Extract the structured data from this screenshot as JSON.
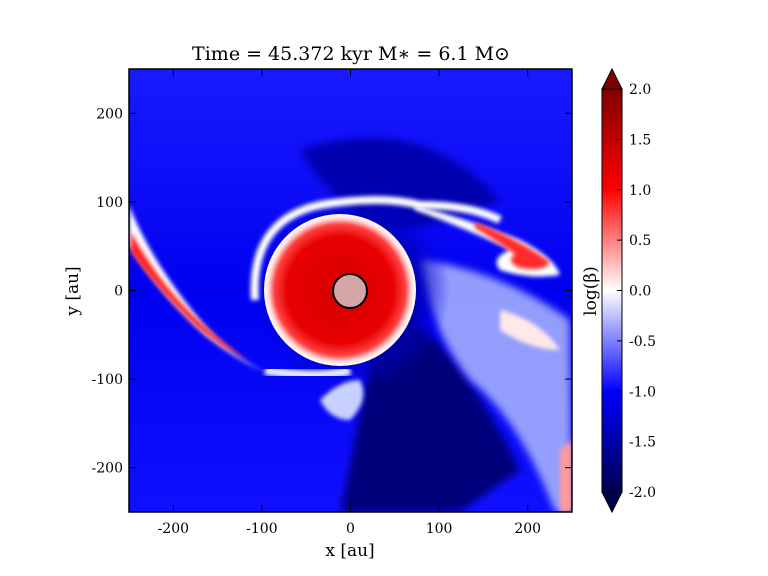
{
  "chart_data": {
    "type": "heatmap",
    "title": "Time = 45.372 kyr    M$_*$ = 6.1 M$_\\odot$",
    "title_display": "Time = 45.372 kyr    M∗ = 6.1 M⊙",
    "xlabel": "x [au]",
    "ylabel": "y [au]",
    "xlim": [
      -250,
      250
    ],
    "ylim": [
      -250,
      250
    ],
    "x_ticks": [
      -200,
      -100,
      0,
      100,
      200
    ],
    "y_ticks": [
      -200,
      -100,
      0,
      100,
      200
    ],
    "x_tick_labels": [
      "-200",
      "-100",
      "0",
      "100",
      "200"
    ],
    "y_tick_labels": [
      "-200",
      "-100",
      "0",
      "100",
      "200"
    ],
    "colorbar": {
      "label": "log(β)",
      "range": [
        -2.0,
        2.0
      ],
      "extend": "both",
      "ticks": [
        -2.0,
        -1.5,
        -1.0,
        -0.5,
        0.0,
        0.5,
        1.0,
        1.5,
        2.0
      ],
      "tick_labels": [
        "-2.0",
        "-1.5",
        "-1.0",
        "-0.5",
        "0.0",
        "0.5",
        "1.0",
        "1.5",
        "2.0"
      ],
      "colormap": "seismic"
    },
    "grid": false,
    "features": {
      "star": {
        "x": 0,
        "y": 0,
        "radius_au": 20,
        "color": "#d4a6a6"
      },
      "disk": {
        "x": 0,
        "y": 0,
        "radius_au": 80,
        "log_beta": 1.0
      },
      "spiral_arm_left": {
        "from": [
          -250,
          60
        ],
        "to": [
          -100,
          -90
        ],
        "log_beta": 1.0
      },
      "spiral_arm_upper_right": {
        "from": [
          80,
          100
        ],
        "to": [
          230,
          20
        ],
        "log_beta": 1.0
      }
    }
  }
}
